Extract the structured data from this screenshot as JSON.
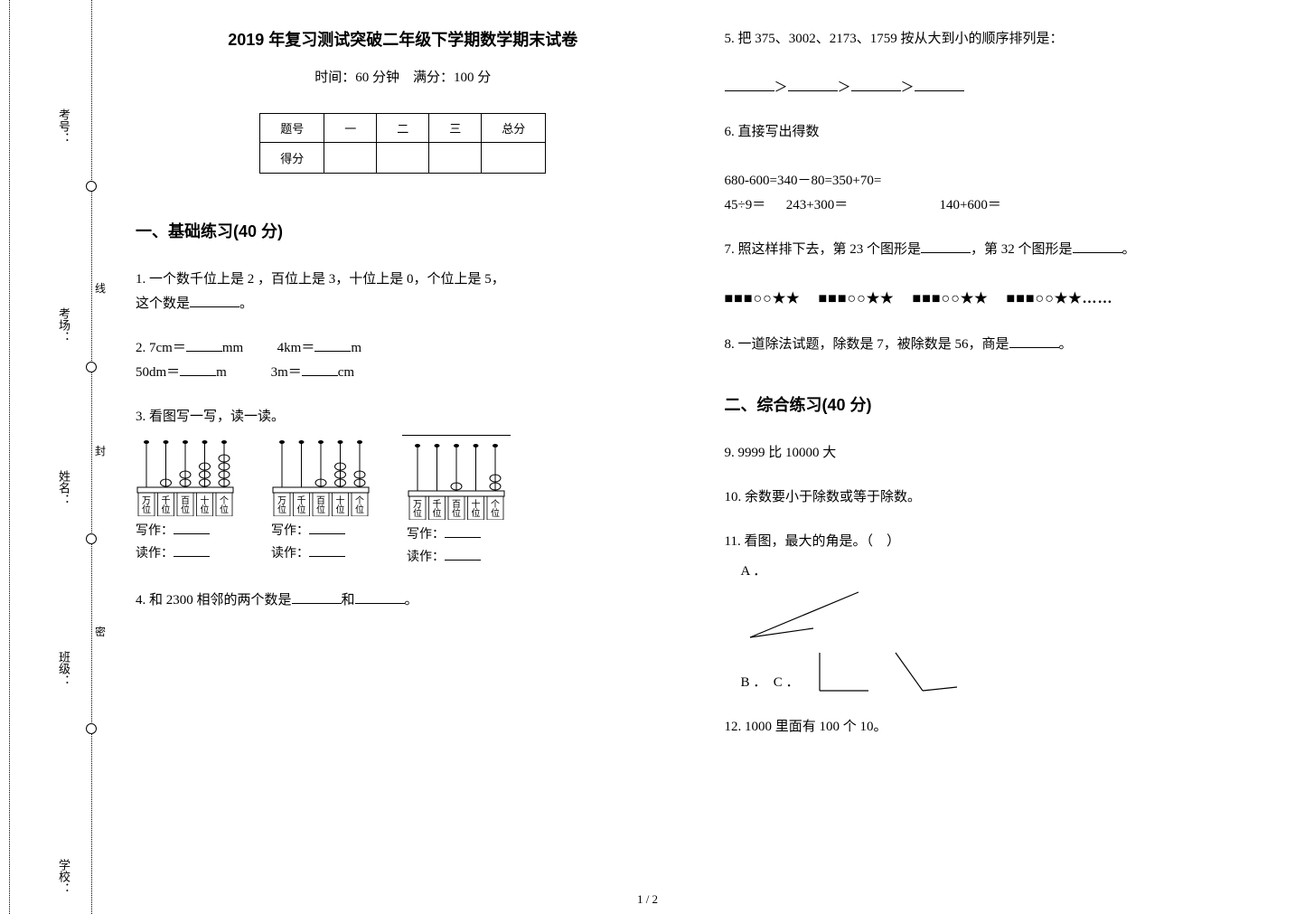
{
  "binding": {
    "labels": [
      "考号：",
      "考场：",
      "姓名：",
      "班级：",
      "学校："
    ],
    "seal_chars": [
      "线",
      "封",
      "密"
    ]
  },
  "header": {
    "title": "2019 年复习测试突破二年级下学期数学期末试卷",
    "subtitle": "时间：60 分钟　满分：100 分"
  },
  "score_table": {
    "row1": [
      "题号",
      "一",
      "二",
      "三",
      "总分"
    ],
    "row2_label": "得分"
  },
  "sections": {
    "s1": "一、基础练习(40 分)",
    "s2": "二、综合练习(40 分)"
  },
  "q1": {
    "text_a": "1. 一个数千位上是 2 ，百位上是 3，十位上是 0，个位上是 5，",
    "text_b": "这个数是",
    "tail": "。"
  },
  "q2": {
    "a": "2. 7cm＝",
    "a_unit": "mm",
    "b": "4km＝",
    "b_unit": "m",
    "c": "50dm＝",
    "c_unit": "m",
    "d": "3m＝",
    "d_unit": "cm"
  },
  "q3": {
    "text": "3. 看图写一写，读一读。",
    "place_labels": [
      "万位",
      "千位",
      "百位",
      "十位",
      "个位"
    ],
    "write": "写作：",
    "read": "读作：",
    "abaci": [
      {
        "beads": [
          0,
          1,
          2,
          3,
          4
        ]
      },
      {
        "beads": [
          0,
          0,
          1,
          3,
          2
        ]
      },
      {
        "beads": [
          0,
          0,
          1,
          0,
          2
        ]
      }
    ]
  },
  "q4": {
    "a": "4. 和 2300 相邻的两个数是",
    "mid": "和",
    "tail": "。"
  },
  "q5": {
    "text": "5. 把 375、3002、2173、1759 按从大到小的顺序排列是："
  },
  "q6": {
    "text": "6. 直接写出得数",
    "l1": "680-600=340－80=350+70=",
    "l2a": "45÷9＝",
    "l2b": "243+300＝",
    "l2c": "140+600＝"
  },
  "q7": {
    "a": "7. 照这样排下去，第 23 个图形是",
    "b": "，第 32 个图形是",
    "tail": "。",
    "pattern_unit": "■■■○○★★",
    "pattern_tail": "■■■○○★★……"
  },
  "q8": {
    "a": "8. 一道除法试题，除数是 7，被除数是 56，商是",
    "tail": "。"
  },
  "q9": {
    "text": "9. 9999 比 10000 大"
  },
  "q10": {
    "text": "10. 余数要小于除数或等于除数。"
  },
  "q11": {
    "text": "11. 看图，最大的角是。（　）",
    "optA": "A ．",
    "optBC": "B ．　C ．"
  },
  "q12": {
    "text": "12. 1000 里面有 100 个 10。"
  },
  "pagenum": "1 / 2",
  "colors": {
    "text": "#000000",
    "bg": "#ffffff"
  }
}
